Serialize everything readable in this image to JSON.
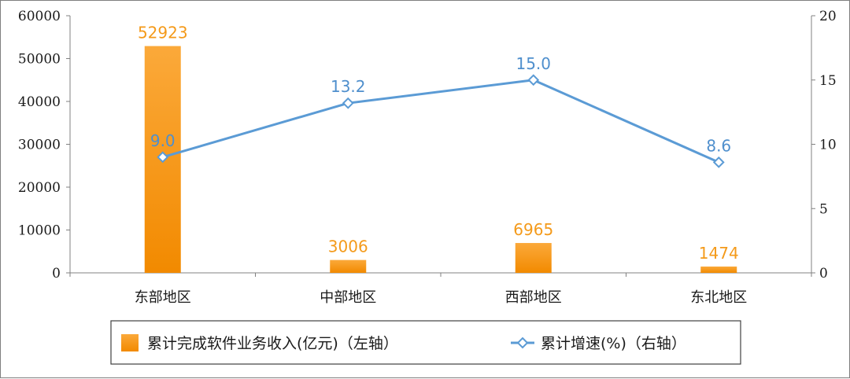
{
  "chart_data": {
    "type": "bar",
    "categories": [
      "东部地区",
      "中部地区",
      "西部地区",
      "东北地区"
    ],
    "series": [
      {
        "name": "累计完成软件业务收入(亿元)（左轴）",
        "type": "bar",
        "axis": "left",
        "color": "#f59a13",
        "values": [
          52923,
          3006,
          6965,
          1474
        ]
      },
      {
        "name": "累计增速(%)（右轴）",
        "type": "line",
        "axis": "right",
        "color": "#5b9bd5",
        "marker": "diamond",
        "values": [
          9.0,
          13.2,
          15.0,
          8.6
        ]
      }
    ],
    "y_left": {
      "ylim": [
        0,
        60000
      ],
      "ticks": [
        "0",
        "10000",
        "20000",
        "30000",
        "40000",
        "50000",
        "60000"
      ]
    },
    "y_right": {
      "ylim": [
        0,
        20
      ],
      "ticks": [
        "0",
        "5",
        "10",
        "15",
        "20"
      ]
    },
    "bar_labels": [
      "52923",
      "3006",
      "6965",
      "1474"
    ],
    "line_labels": [
      "9.0",
      "13.2",
      "15.0",
      "8.6"
    ],
    "grid": false,
    "legend_position": "bottom"
  }
}
